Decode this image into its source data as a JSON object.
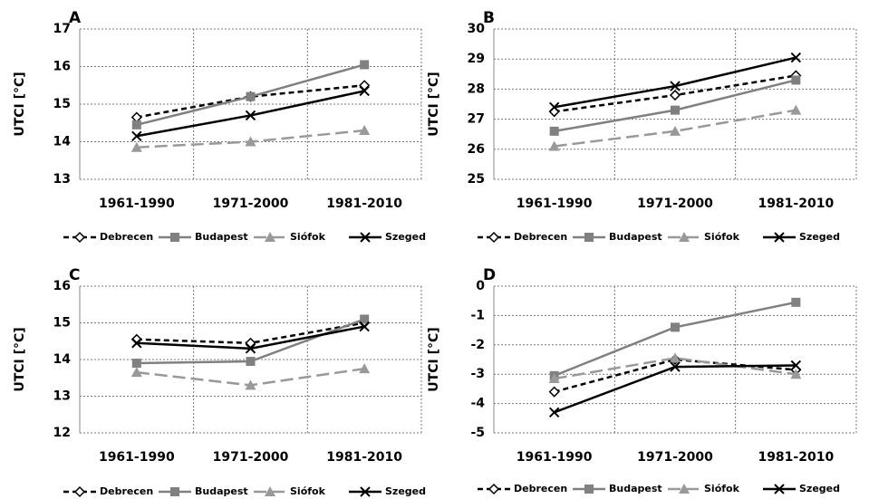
{
  "chart_data": [
    {
      "type": "line",
      "title": "A",
      "y_label": "UTCI [°C]",
      "categories": [
        "1961-1990",
        "1971-2000",
        "1981-2010"
      ],
      "ylim": [
        13,
        17
      ],
      "yticks": [
        13,
        14,
        15,
        16,
        17
      ],
      "grid": true,
      "series": [
        {
          "name": "Debrecen",
          "color": "#000000",
          "dash": "6,4",
          "marker": "diamond",
          "values": [
            14.65,
            15.2,
            15.5
          ]
        },
        {
          "name": "Budapest",
          "color": "#808080",
          "dash": "none",
          "marker": "square",
          "values": [
            14.45,
            15.2,
            16.05
          ]
        },
        {
          "name": "Siófok",
          "color": "#999999",
          "dash": "14,6",
          "marker": "triangle",
          "values": [
            13.85,
            14.0,
            14.3
          ]
        },
        {
          "name": "Szeged",
          "color": "#000000",
          "dash": "none",
          "marker": "x",
          "values": [
            14.15,
            14.7,
            15.35
          ]
        }
      ]
    },
    {
      "type": "line",
      "title": "B",
      "y_label": "UTCI [°C]",
      "categories": [
        "1961-1990",
        "1971-2000",
        "1981-2010"
      ],
      "ylim": [
        25,
        30
      ],
      "yticks": [
        25,
        26,
        27,
        28,
        29,
        30
      ],
      "grid": true,
      "series": [
        {
          "name": "Debrecen",
          "color": "#000000",
          "dash": "6,4",
          "marker": "diamond",
          "values": [
            27.25,
            27.8,
            28.45
          ]
        },
        {
          "name": "Budapest",
          "color": "#808080",
          "dash": "none",
          "marker": "square",
          "values": [
            26.6,
            27.3,
            28.3
          ]
        },
        {
          "name": "Siófok",
          "color": "#999999",
          "dash": "14,6",
          "marker": "triangle",
          "values": [
            26.1,
            26.6,
            27.3
          ]
        },
        {
          "name": "Szeged",
          "color": "#000000",
          "dash": "none",
          "marker": "x",
          "values": [
            27.4,
            28.1,
            29.05
          ]
        }
      ]
    },
    {
      "type": "line",
      "title": "C",
      "y_label": "UTCI [°C]",
      "categories": [
        "1961-1990",
        "1971-2000",
        "1981-2010"
      ],
      "ylim": [
        12,
        16
      ],
      "yticks": [
        12,
        13,
        14,
        15,
        16
      ],
      "grid": true,
      "series": [
        {
          "name": "Debrecen",
          "color": "#000000",
          "dash": "6,4",
          "marker": "diamond",
          "values": [
            14.55,
            14.45,
            15.0
          ]
        },
        {
          "name": "Budapest",
          "color": "#808080",
          "dash": "none",
          "marker": "square",
          "values": [
            13.9,
            13.95,
            15.1
          ]
        },
        {
          "name": "Siófok",
          "color": "#999999",
          "dash": "14,6",
          "marker": "triangle",
          "values": [
            13.65,
            13.3,
            13.75
          ]
        },
        {
          "name": "Szeged",
          "color": "#000000",
          "dash": "none",
          "marker": "x",
          "values": [
            14.45,
            14.3,
            14.9
          ]
        }
      ]
    },
    {
      "type": "line",
      "title": "D",
      "y_label": "UTCI [°C]",
      "categories": [
        "1961-1990",
        "1971-2000",
        "1981-2010"
      ],
      "ylim": [
        -5,
        0
      ],
      "yticks": [
        -5,
        -4,
        -3,
        -2,
        -1,
        0
      ],
      "grid": true,
      "series": [
        {
          "name": "Debrecen",
          "color": "#000000",
          "dash": "6,4",
          "marker": "diamond",
          "values": [
            -3.6,
            -2.5,
            -2.85
          ]
        },
        {
          "name": "Budapest",
          "color": "#808080",
          "dash": "none",
          "marker": "square",
          "values": [
            -3.05,
            -1.4,
            -0.55
          ]
        },
        {
          "name": "Siófok",
          "color": "#999999",
          "dash": "14,6",
          "marker": "triangle",
          "values": [
            -3.15,
            -2.45,
            -3.0
          ]
        },
        {
          "name": "Szeged",
          "color": "#000000",
          "dash": "none",
          "marker": "x",
          "values": [
            -4.3,
            -2.75,
            -2.7
          ]
        }
      ]
    }
  ]
}
